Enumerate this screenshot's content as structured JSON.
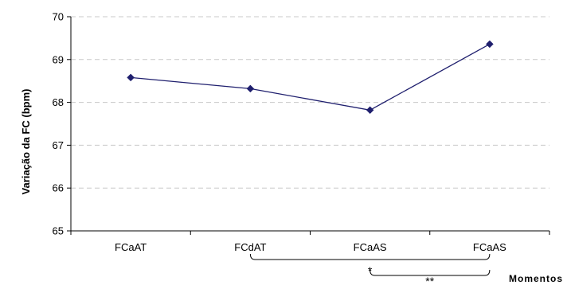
{
  "chart_data": {
    "type": "line",
    "categories": [
      "FCaAT",
      "FCdAT",
      "FCaAS",
      "FCaAS"
    ],
    "series": [
      {
        "values": [
          68.58,
          68.32,
          67.82,
          69.36
        ],
        "color": "#1f1f6e"
      }
    ],
    "ylabel": "Variação da FC (bpm)",
    "xlabel": "Momentos",
    "ylim": [
      65,
      70
    ],
    "yticks": [
      65,
      66,
      67,
      68,
      69,
      70
    ],
    "grid": "horizontal dashed",
    "marker": "diamond",
    "annotations": [
      {
        "text": "*",
        "from_category": 1,
        "to_category": 3
      },
      {
        "text": "**",
        "from_category": 2,
        "to_category": 3
      }
    ]
  }
}
